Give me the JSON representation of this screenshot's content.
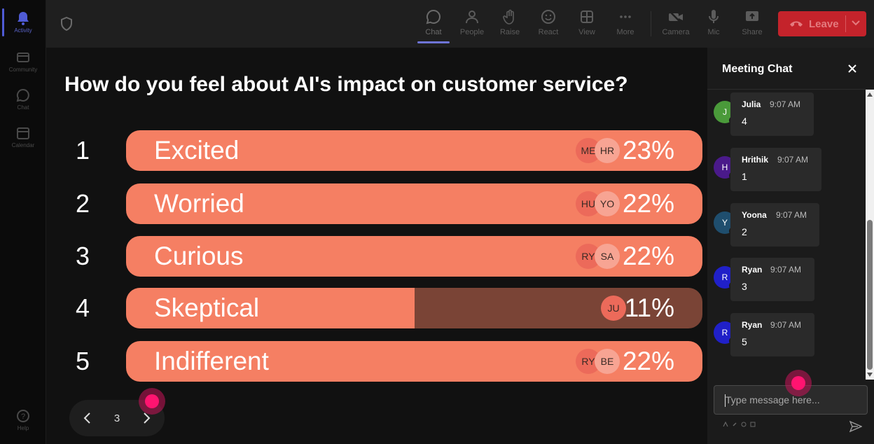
{
  "rail": {
    "items": [
      {
        "label": "Activity",
        "icon": "bell-icon",
        "active": true
      },
      {
        "label": "Community",
        "icon": "community-icon"
      },
      {
        "label": "Chat",
        "icon": "chat-icon"
      },
      {
        "label": "Calendar",
        "icon": "calendar-icon"
      }
    ],
    "help": {
      "label": "Help",
      "icon": "help-icon"
    }
  },
  "toolbar": {
    "buttons": [
      {
        "label": "Chat",
        "icon": "chat-icon",
        "active": true
      },
      {
        "label": "People",
        "icon": "people-icon"
      },
      {
        "label": "Raise",
        "icon": "raise-hand-icon"
      },
      {
        "label": "React",
        "icon": "react-icon"
      },
      {
        "label": "View",
        "icon": "view-icon"
      },
      {
        "label": "More",
        "icon": "more-icon"
      },
      {
        "label": "Camera",
        "icon": "camera-off-icon"
      },
      {
        "label": "Mic",
        "icon": "mic-icon"
      },
      {
        "label": "Share",
        "icon": "share-icon"
      }
    ],
    "leave_label": "Leave",
    "leave_color": "#c4232b"
  },
  "poll": {
    "question": "How do you feel about AI's impact on customer service?",
    "accent": "#f57f63",
    "options": [
      {
        "num": "1",
        "label": "Excited",
        "pct": "23%",
        "avatars": [
          "ME",
          "HR"
        ],
        "highlight": true
      },
      {
        "num": "2",
        "label": "Worried",
        "pct": "22%",
        "avatars": [
          "HU",
          "YO"
        ],
        "highlight": true
      },
      {
        "num": "3",
        "label": "Curious",
        "pct": "22%",
        "avatars": [
          "RY",
          "SA"
        ],
        "highlight": true
      },
      {
        "num": "4",
        "label": "Skeptical",
        "pct": "11%",
        "avatars": [
          "JU"
        ],
        "highlight": false,
        "fill_fraction": 0.5
      },
      {
        "num": "5",
        "label": "Indifferent",
        "pct": "22%",
        "avatars": [
          "RY",
          "BE"
        ],
        "highlight": true
      }
    ],
    "pager": {
      "page": "3"
    }
  },
  "chat": {
    "title": "Meeting Chat",
    "messages": [
      {
        "initial": "J",
        "name": "Julia",
        "time": "9:07 AM",
        "text": "4",
        "color": "#4a9a3a"
      },
      {
        "initial": "H",
        "name": "Hrithik",
        "time": "9:07 AM",
        "text": "1",
        "color": "#4a1a8a"
      },
      {
        "initial": "Y",
        "name": "Yoona",
        "time": "9:07 AM",
        "text": "2",
        "color": "#1f4e6e"
      },
      {
        "initial": "R",
        "name": "Ryan",
        "time": "9:07 AM",
        "text": "3",
        "color": "#2020c8"
      },
      {
        "initial": "R",
        "name": "Ryan",
        "time": "9:07 AM",
        "text": "5",
        "color": "#2020c8"
      }
    ],
    "placeholder": "Type message here..."
  }
}
